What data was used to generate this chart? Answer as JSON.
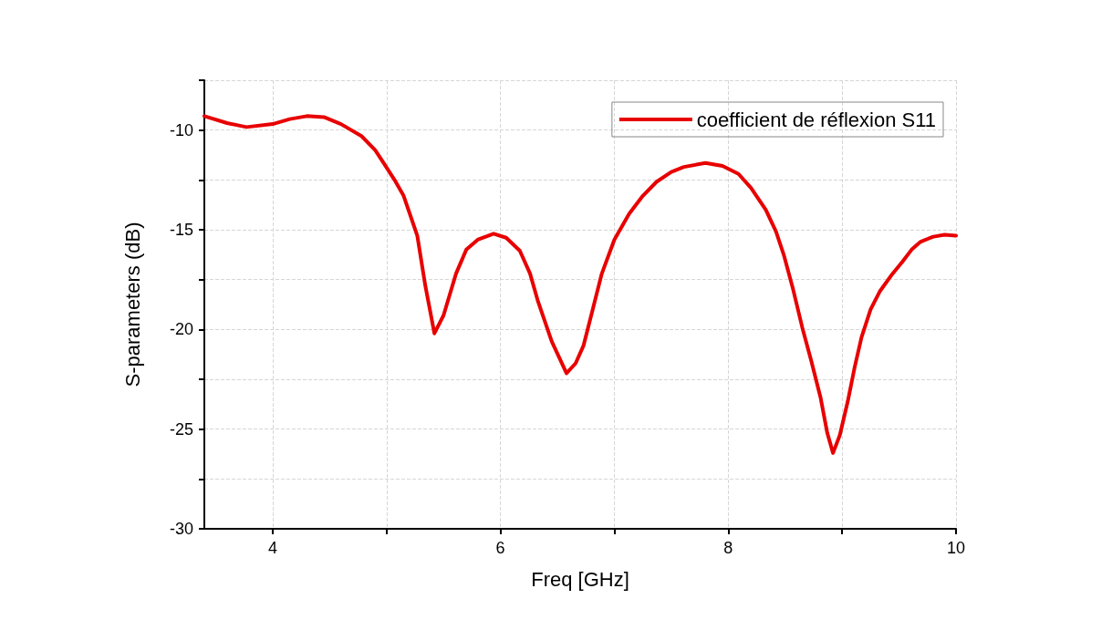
{
  "chart_data": {
    "type": "line",
    "xlabel": "Freq [GHz]",
    "ylabel": "S-parameters (dB)",
    "xlim": [
      3.4,
      10
    ],
    "xticks": [
      4,
      {
        "value": 5,
        "label": null
      },
      6,
      {
        "value": 7,
        "label": null
      },
      8,
      {
        "value": 9,
        "label": null
      },
      10
    ],
    "ylim": [
      -30,
      -7.5
    ],
    "yticks": [
      -30,
      {
        "value": -27.5,
        "label": null
      },
      -25,
      {
        "value": -22.5,
        "label": null
      },
      -20,
      {
        "value": -17.5,
        "label": null
      },
      -15,
      {
        "value": -12.5,
        "label": null
      },
      -10,
      {
        "value": -7.5,
        "label": null
      }
    ],
    "grid": true,
    "legend": "top right",
    "marker": "none",
    "line_style": "solid",
    "series": [
      {
        "name": "coefficient de réflexion S11",
        "color": "#e80000",
        "x": [
          3.4,
          3.6,
          3.77,
          4.0,
          4.15,
          4.3,
          4.45,
          4.6,
          4.78,
          4.9,
          4.98,
          5.07,
          5.15,
          5.27,
          5.34,
          5.42,
          5.5,
          5.61,
          5.7,
          5.8,
          5.94,
          6.05,
          6.17,
          6.26,
          6.33,
          6.45,
          6.58,
          6.66,
          6.73,
          6.81,
          6.89,
          7.0,
          7.13,
          7.25,
          7.37,
          7.5,
          7.61,
          7.8,
          7.95,
          8.09,
          8.2,
          8.33,
          8.42,
          8.49,
          8.57,
          8.65,
          8.73,
          8.81,
          8.87,
          8.92,
          8.98,
          9.05,
          9.11,
          9.17,
          9.25,
          9.33,
          9.43,
          9.53,
          9.61,
          9.69,
          9.8,
          9.9,
          10.0
        ],
        "values": [
          -9.3,
          -9.65,
          -9.85,
          -9.7,
          -9.45,
          -9.3,
          -9.35,
          -9.7,
          -10.3,
          -11.0,
          -11.7,
          -12.5,
          -13.3,
          -15.3,
          -17.8,
          -20.2,
          -19.3,
          -17.2,
          -16.0,
          -15.5,
          -15.2,
          -15.4,
          -16.05,
          -17.2,
          -18.6,
          -20.6,
          -22.2,
          -21.7,
          -20.8,
          -19.0,
          -17.2,
          -15.5,
          -14.2,
          -13.3,
          -12.6,
          -12.1,
          -11.85,
          -11.65,
          -11.8,
          -12.2,
          -12.9,
          -14.0,
          -15.1,
          -16.3,
          -18.0,
          -19.9,
          -21.6,
          -23.4,
          -25.2,
          -26.2,
          -25.3,
          -23.6,
          -21.9,
          -20.4,
          -19.0,
          -18.1,
          -17.3,
          -16.6,
          -16.0,
          -15.6,
          -15.35,
          -15.25,
          -15.3
        ]
      }
    ]
  }
}
